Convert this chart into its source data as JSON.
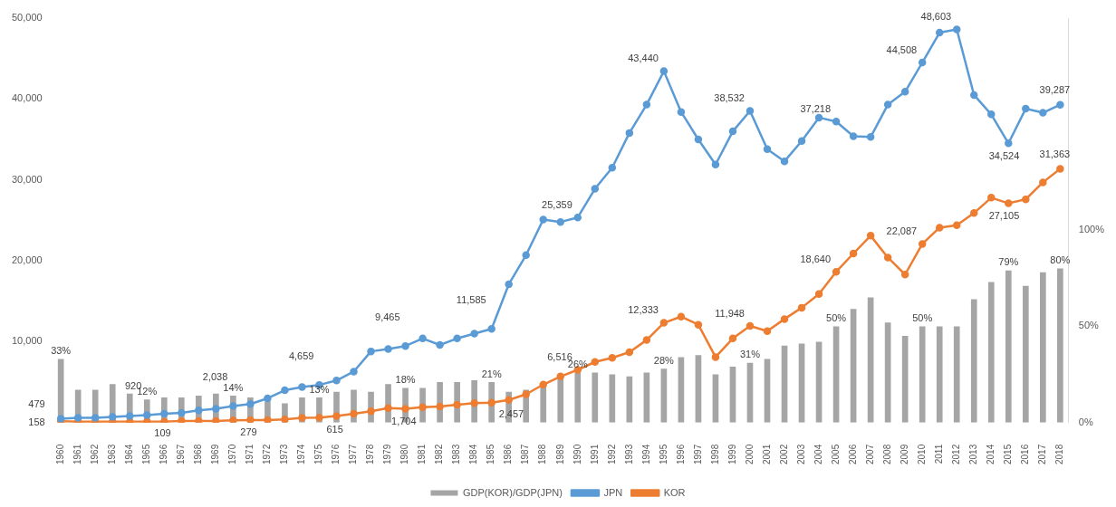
{
  "chart_data": {
    "type": "line",
    "categories": [
      "1960",
      "1961",
      "1962",
      "1963",
      "1964",
      "1965",
      "1966",
      "1967",
      "1968",
      "1969",
      "1970",
      "1971",
      "1972",
      "1973",
      "1974",
      "1975",
      "1976",
      "1977",
      "1978",
      "1979",
      "1980",
      "1981",
      "1982",
      "1983",
      "1984",
      "1985",
      "1986",
      "1987",
      "1988",
      "1989",
      "1990",
      "1991",
      "1992",
      "1993",
      "1994",
      "1995",
      "1996",
      "1997",
      "1998",
      "1999",
      "2000",
      "2001",
      "2002",
      "2003",
      "2004",
      "2005",
      "2006",
      "2007",
      "2008",
      "2009",
      "2010",
      "2011",
      "2012",
      "2013",
      "2014",
      "2015",
      "2016",
      "2017",
      "2018"
    ],
    "series": [
      {
        "name": "GDP(KOR)/GDP(JPN)",
        "type": "bar",
        "axis": "y2",
        "color": "#a5a5a5",
        "values": [
          33,
          17,
          17,
          20,
          15,
          12,
          13,
          13,
          14,
          15,
          14,
          13,
          11,
          10,
          13,
          13,
          16,
          17,
          16,
          20,
          18,
          18,
          21,
          21,
          22,
          21,
          16,
          17,
          19,
          23,
          26,
          26,
          25,
          24,
          26,
          28,
          34,
          35,
          25,
          29,
          31,
          33,
          40,
          41,
          42,
          50,
          59,
          65,
          52,
          45,
          50,
          50,
          50,
          64,
          73,
          79,
          71,
          78,
          80
        ],
        "value_labels": [
          "33%",
          null,
          null,
          null,
          null,
          "12%",
          null,
          null,
          null,
          null,
          "14%",
          null,
          null,
          null,
          null,
          "13%",
          null,
          null,
          null,
          null,
          "18%",
          null,
          null,
          null,
          null,
          "21%",
          null,
          null,
          null,
          null,
          "26%",
          null,
          null,
          null,
          null,
          "28%",
          null,
          null,
          null,
          null,
          "31%",
          null,
          null,
          null,
          null,
          "50%",
          null,
          null,
          null,
          null,
          "50%",
          null,
          null,
          null,
          null,
          "79%",
          null,
          null,
          "80%"
        ]
      },
      {
        "name": "JPN",
        "color": "#5b9bd5",
        "values": [
          479,
          600,
          600,
          700,
          800,
          920,
          1100,
          1200,
          1500,
          1700,
          2038,
          2300,
          3000,
          4000,
          4400,
          4659,
          5200,
          6300,
          8800,
          9100,
          9465,
          10400,
          9600,
          10400,
          11000,
          11585,
          17100,
          20700,
          25100,
          24800,
          25359,
          28900,
          31500,
          35800,
          39300,
          43440,
          38400,
          35000,
          31900,
          36000,
          38532,
          33800,
          32300,
          34800,
          37700,
          37218,
          35400,
          35300,
          39300,
          40900,
          44508,
          48200,
          48603,
          40500,
          38100,
          34524,
          38800,
          38300,
          39287
        ],
        "value_labels": [
          "479",
          null,
          null,
          null,
          null,
          "920",
          null,
          null,
          null,
          null,
          "2,038",
          null,
          null,
          null,
          null,
          "4,659",
          null,
          null,
          null,
          null,
          "9,465",
          null,
          null,
          null,
          null,
          "11,585",
          null,
          null,
          null,
          null,
          "25,359",
          null,
          null,
          null,
          null,
          "43,440",
          null,
          null,
          null,
          null,
          "38,532",
          null,
          null,
          null,
          null,
          "37,218",
          null,
          null,
          null,
          null,
          "44,508",
          null,
          "48,603",
          null,
          null,
          "34,524",
          null,
          null,
          "39,287"
        ]
      },
      {
        "name": "KOR",
        "color": "#ed7d31",
        "values": [
          158,
          100,
          100,
          100,
          100,
          109,
          100,
          200,
          200,
          200,
          279,
          300,
          300,
          400,
          600,
          615,
          800,
          1100,
          1400,
          1800,
          1704,
          1900,
          2000,
          2200,
          2400,
          2457,
          2800,
          3500,
          4700,
          5700,
          6516,
          7500,
          8000,
          8700,
          10200,
          12333,
          13100,
          12100,
          8100,
          10400,
          11948,
          11300,
          12800,
          14200,
          15900,
          18640,
          20900,
          23100,
          20400,
          18300,
          22087,
          24100,
          24400,
          25900,
          27800,
          27105,
          27600,
          29700,
          31363
        ],
        "value_labels": [
          "158",
          null,
          null,
          null,
          null,
          "109",
          null,
          null,
          null,
          null,
          "279",
          null,
          null,
          null,
          null,
          "615",
          null,
          null,
          null,
          null,
          "1,704",
          null,
          null,
          null,
          null,
          "2,457",
          null,
          null,
          null,
          null,
          "6,516",
          null,
          null,
          null,
          null,
          "12,333",
          null,
          null,
          null,
          null,
          "11,948",
          null,
          null,
          null,
          null,
          "18,640",
          null,
          null,
          null,
          null,
          "22,087",
          null,
          null,
          null,
          null,
          "27,105",
          null,
          null,
          "31,363"
        ]
      }
    ],
    "ylim": [
      0,
      50000
    ],
    "yticks": [
      {
        "value": 10000,
        "label": "10,000"
      },
      {
        "value": 20000,
        "label": "20,000"
      },
      {
        "value": 30000,
        "label": "30,000"
      },
      {
        "value": 40000,
        "label": "40,000"
      },
      {
        "value": 50000,
        "label": "50,000"
      }
    ],
    "y2lim": [
      0,
      210
    ],
    "y2ticks": [
      {
        "value": 0,
        "label": "0%"
      },
      {
        "value": 50,
        "label": "50%"
      },
      {
        "value": 100,
        "label": "100%"
      }
    ],
    "grid": false,
    "legend": "bottom",
    "marker": "circle",
    "line_style": "solid"
  }
}
